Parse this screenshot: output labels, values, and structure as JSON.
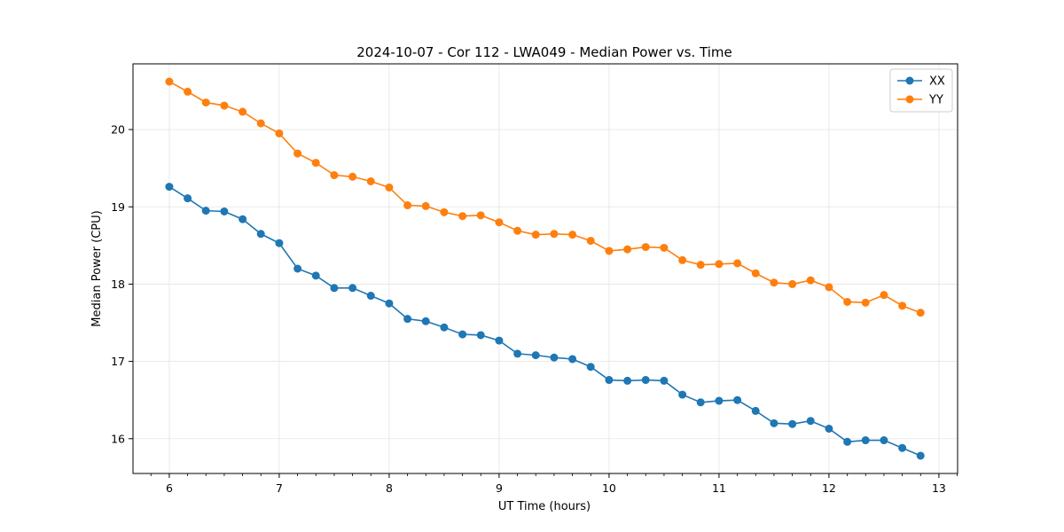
{
  "chart_data": {
    "type": "line",
    "title": "2024-10-07 - Cor 112 - LWA049 - Median Power vs. Time",
    "xlabel": "UT Time (hours)",
    "ylabel": "Median Power (CPU)",
    "xlim": [
      5.67,
      13.17
    ],
    "ylim": [
      15.55,
      20.85
    ],
    "xticks": [
      6,
      7,
      8,
      9,
      10,
      11,
      12,
      13
    ],
    "yticks": [
      16,
      17,
      18,
      19,
      20
    ],
    "grid": true,
    "legend_position": "top-right",
    "x": [
      6.0,
      6.167,
      6.333,
      6.5,
      6.667,
      6.833,
      7.0,
      7.167,
      7.333,
      7.5,
      7.667,
      7.833,
      8.0,
      8.167,
      8.333,
      8.5,
      8.667,
      8.833,
      9.0,
      9.167,
      9.333,
      9.5,
      9.667,
      9.833,
      10.0,
      10.167,
      10.333,
      10.5,
      10.667,
      10.833,
      11.0,
      11.167,
      11.333,
      11.5,
      11.667,
      11.833,
      12.0,
      12.167,
      12.333,
      12.5,
      12.667,
      12.833
    ],
    "series": [
      {
        "name": "XX",
        "color": "#1f77b4",
        "values": [
          19.26,
          19.11,
          18.95,
          18.94,
          18.84,
          18.65,
          18.53,
          18.2,
          18.11,
          17.95,
          17.95,
          17.85,
          17.75,
          17.55,
          17.52,
          17.44,
          17.35,
          17.34,
          17.27,
          17.1,
          17.08,
          17.05,
          17.03,
          16.93,
          16.76,
          16.75,
          16.76,
          16.75,
          16.57,
          16.47,
          16.49,
          16.5,
          16.36,
          16.2,
          16.19,
          16.23,
          16.13,
          15.96,
          15.98,
          15.98,
          15.88,
          15.78
        ]
      },
      {
        "name": "YY",
        "color": "#ff7f0e",
        "values": [
          20.62,
          20.49,
          20.35,
          20.31,
          20.23,
          20.08,
          19.95,
          19.69,
          19.57,
          19.41,
          19.39,
          19.33,
          19.25,
          19.02,
          19.01,
          18.93,
          18.88,
          18.89,
          18.8,
          18.69,
          18.64,
          18.65,
          18.64,
          18.56,
          18.43,
          18.45,
          18.48,
          18.47,
          18.31,
          18.25,
          18.26,
          18.27,
          18.14,
          18.02,
          18.0,
          18.05,
          17.96,
          17.77,
          17.76,
          17.86,
          17.72,
          17.63
        ]
      }
    ]
  }
}
